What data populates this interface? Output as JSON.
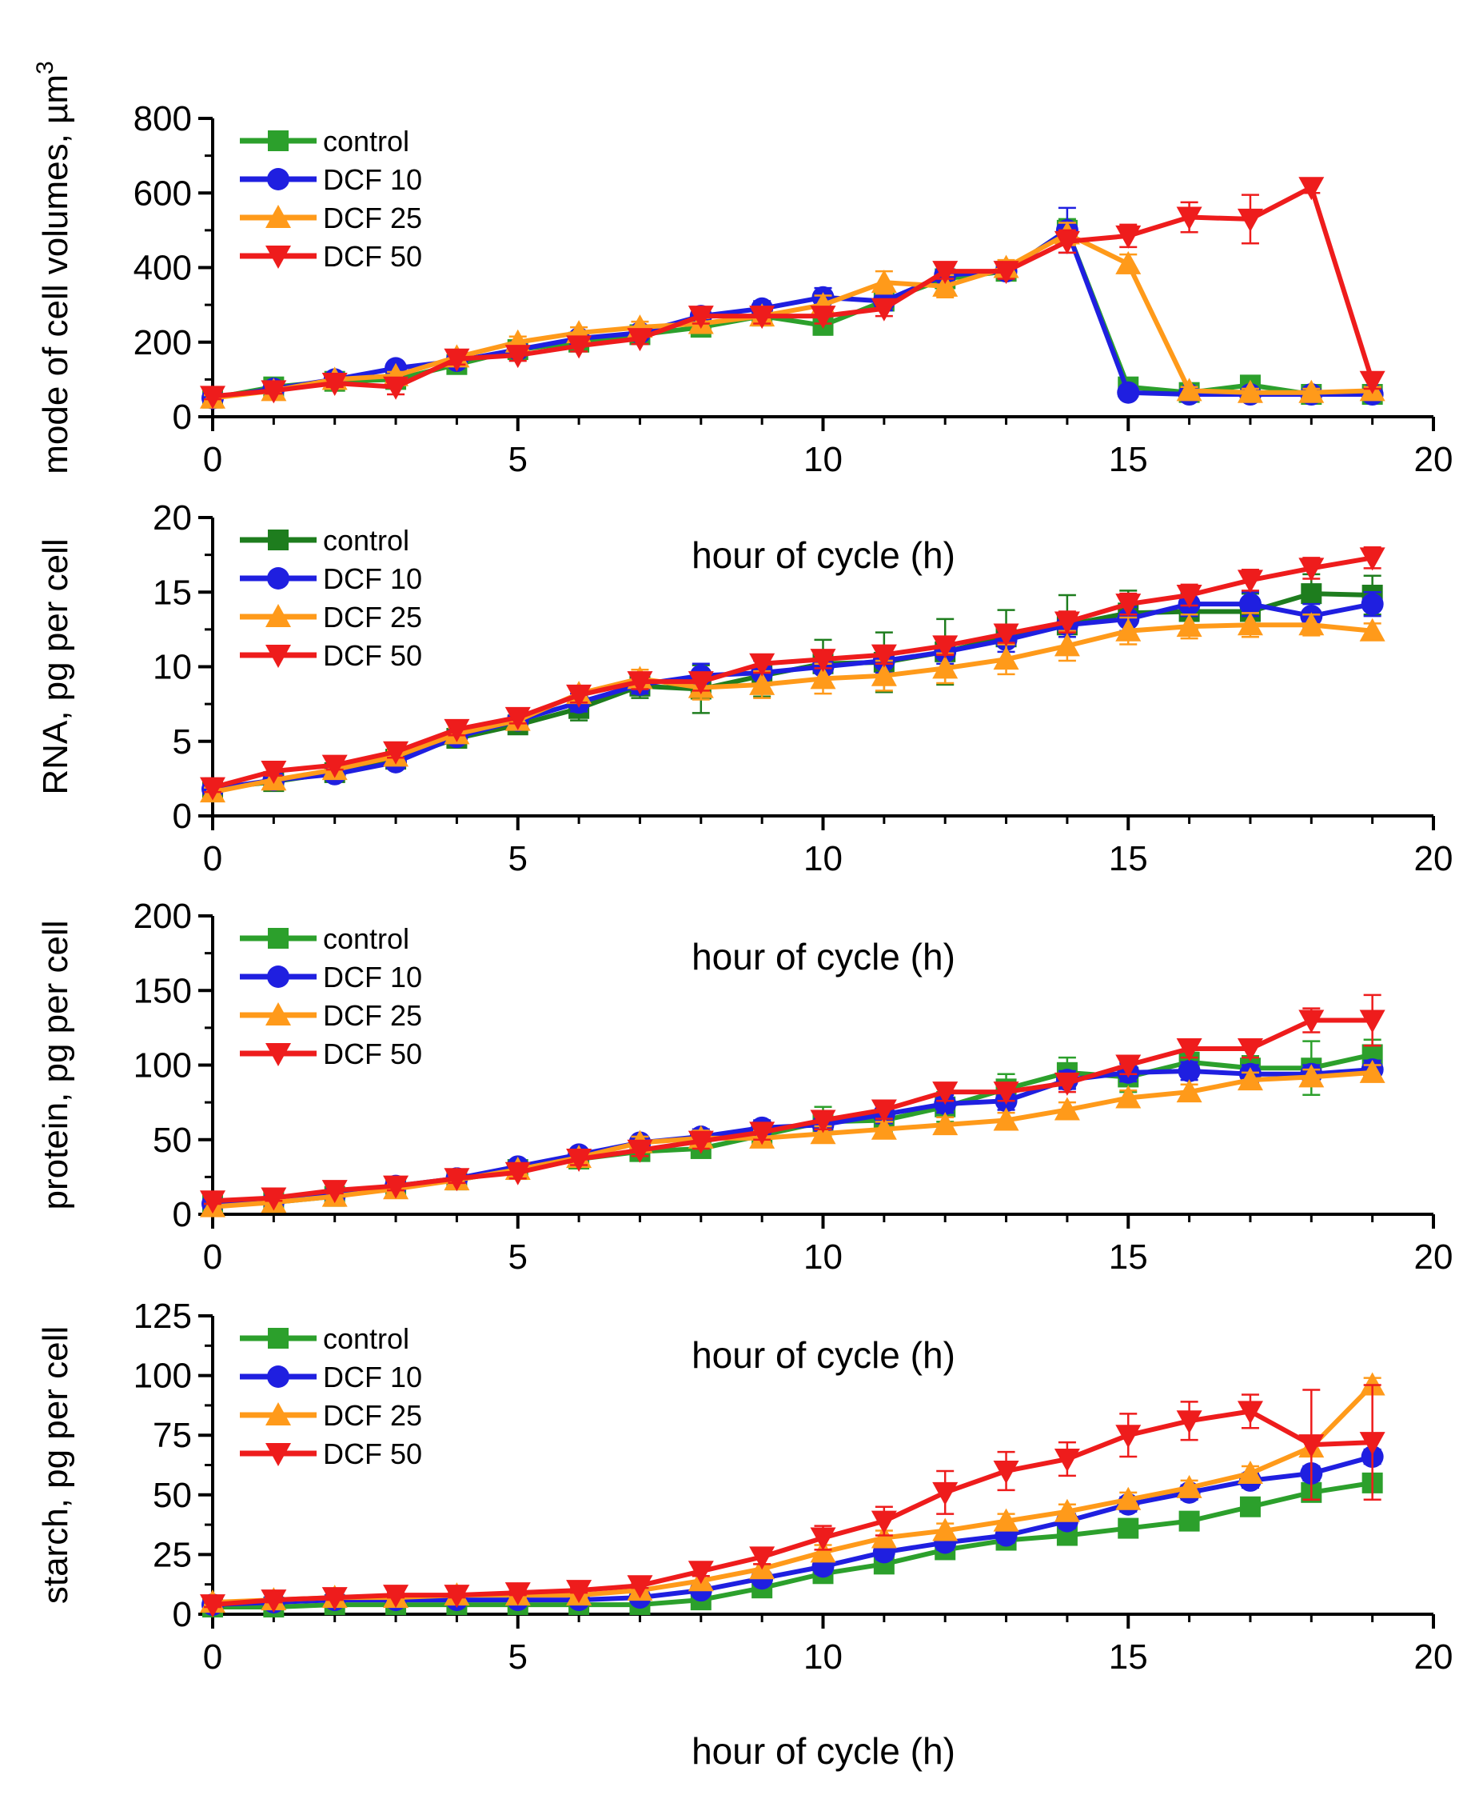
{
  "chart_data": [
    {
      "type": "line",
      "title": "",
      "ylabel": "mode of cell volumes, µm",
      "ylabel_sup": "3",
      "xlabel": "hour of cycle (h)",
      "xlim": [
        0,
        20
      ],
      "ylim": [
        0,
        800
      ],
      "xticks": [
        "0",
        "5",
        "10",
        "15",
        "20"
      ],
      "yticks": [
        "0",
        "200",
        "400",
        "600",
        "800"
      ],
      "x": [
        0,
        1,
        2,
        3,
        4,
        5,
        6,
        7,
        8,
        9,
        10,
        11,
        12,
        13,
        14,
        15,
        16,
        17,
        18,
        19
      ],
      "legend_position": "top-left",
      "series": [
        {
          "name": "control",
          "color": "#2ca02c",
          "marker": "square",
          "values": [
            50,
            80,
            95,
            100,
            140,
            180,
            200,
            220,
            240,
            270,
            245,
            310,
            370,
            390,
            500,
            80,
            65,
            85,
            60,
            60
          ],
          "errors": [
            8,
            8,
            10,
            10,
            15,
            15,
            15,
            15,
            15,
            20,
            25,
            20,
            20,
            20,
            30,
            15,
            10,
            15,
            10,
            10
          ]
        },
        {
          "name": "DCF 10",
          "color": "#1f1fe0",
          "marker": "circle",
          "values": [
            50,
            75,
            100,
            130,
            150,
            180,
            210,
            225,
            270,
            290,
            320,
            310,
            380,
            390,
            500,
            65,
            60,
            60,
            60,
            60
          ],
          "errors": [
            8,
            8,
            10,
            15,
            15,
            15,
            15,
            15,
            20,
            20,
            25,
            25,
            25,
            20,
            60,
            10,
            10,
            10,
            10,
            10
          ]
        },
        {
          "name": "DCF 25",
          "color": "#ff9a1a",
          "marker": "triangle-up",
          "values": [
            50,
            70,
            100,
            110,
            160,
            200,
            225,
            240,
            250,
            270,
            300,
            360,
            350,
            400,
            490,
            410,
            70,
            65,
            65,
            70
          ],
          "errors": [
            8,
            8,
            10,
            10,
            15,
            15,
            15,
            15,
            15,
            20,
            25,
            30,
            30,
            20,
            30,
            25,
            10,
            10,
            10,
            10
          ]
        },
        {
          "name": "DCF 50",
          "color": "#ee1c1c",
          "marker": "triangle-down",
          "values": [
            55,
            70,
            90,
            80,
            155,
            165,
            190,
            210,
            270,
            270,
            270,
            290,
            390,
            390,
            470,
            485,
            535,
            530,
            615,
            95
          ],
          "errors": [
            8,
            8,
            10,
            20,
            15,
            15,
            15,
            15,
            20,
            20,
            20,
            20,
            20,
            20,
            30,
            30,
            40,
            65,
            15,
            20
          ]
        }
      ]
    },
    {
      "type": "line",
      "title": "",
      "ylabel": "RNA, pg per cell",
      "xlabel": "hour of cycle (h)",
      "xlim": [
        0,
        20
      ],
      "ylim": [
        0,
        20
      ],
      "xticks": [
        "0",
        "5",
        "10",
        "15",
        "20"
      ],
      "yticks": [
        "0",
        "5",
        "10",
        "15",
        "20"
      ],
      "x": [
        0,
        1,
        2,
        3,
        4,
        5,
        6,
        7,
        8,
        9,
        10,
        11,
        12,
        13,
        14,
        15,
        16,
        17,
        18,
        19
      ],
      "legend_position": "top-left",
      "series": [
        {
          "name": "control",
          "color": "#1e7d1e",
          "marker": "square",
          "values": [
            1.8,
            2.3,
            2.9,
            3.8,
            5.2,
            6.1,
            7.2,
            8.7,
            8.5,
            9.4,
            10.2,
            10.3,
            11.0,
            12.0,
            12.8,
            13.6,
            13.7,
            13.7,
            14.9,
            14.8
          ],
          "errors": [
            0.3,
            0.3,
            0.4,
            0.4,
            0.4,
            0.5,
            0.8,
            0.8,
            1.6,
            1.4,
            1.6,
            2.0,
            2.2,
            1.8,
            2.0,
            1.5,
            1.2,
            1.2,
            1.3,
            1.3
          ]
        },
        {
          "name": "DCF 10",
          "color": "#1f1fe0",
          "marker": "circle",
          "values": [
            1.8,
            2.4,
            2.8,
            3.6,
            5.3,
            6.4,
            7.6,
            8.8,
            9.4,
            9.6,
            10.0,
            10.4,
            11.0,
            11.8,
            12.8,
            13.2,
            14.2,
            14.2,
            13.4,
            14.2
          ],
          "errors": [
            0.3,
            0.3,
            0.3,
            0.4,
            0.4,
            0.4,
            0.6,
            0.6,
            0.8,
            0.8,
            0.8,
            0.8,
            0.8,
            0.8,
            0.8,
            0.8,
            0.8,
            0.8,
            0.8,
            0.8
          ]
        },
        {
          "name": "DCF 25",
          "color": "#ff9a1a",
          "marker": "triangle-up",
          "values": [
            1.6,
            2.4,
            3.1,
            4.0,
            5.5,
            6.4,
            8.2,
            9.2,
            8.6,
            8.8,
            9.2,
            9.4,
            9.9,
            10.5,
            11.4,
            12.4,
            12.7,
            12.8,
            12.8,
            12.4
          ],
          "errors": [
            0.3,
            0.3,
            0.3,
            0.4,
            0.4,
            0.4,
            0.5,
            0.6,
            0.8,
            0.9,
            1.0,
            1.0,
            1.0,
            1.0,
            1.0,
            0.9,
            0.8,
            0.8,
            0.7,
            0.5
          ]
        },
        {
          "name": "DCF 50",
          "color": "#ee1c1c",
          "marker": "triangle-down",
          "values": [
            1.9,
            3.0,
            3.4,
            4.3,
            5.8,
            6.6,
            8.1,
            9.0,
            9.0,
            10.2,
            10.5,
            10.8,
            11.4,
            12.2,
            13.0,
            14.2,
            14.8,
            15.8,
            16.6,
            17.3
          ],
          "errors": [
            0.3,
            0.3,
            0.3,
            0.4,
            0.4,
            0.4,
            0.5,
            0.5,
            0.6,
            0.6,
            0.6,
            0.6,
            0.6,
            0.6,
            0.7,
            0.7,
            0.7,
            0.7,
            0.7,
            0.7
          ]
        }
      ]
    },
    {
      "type": "line",
      "title": "",
      "ylabel": "protein, pg per cell",
      "xlabel": "hour of cycle (h)",
      "xlim": [
        0,
        20
      ],
      "ylim": [
        0,
        200
      ],
      "xticks": [
        "0",
        "5",
        "10",
        "15",
        "20"
      ],
      "yticks": [
        "0",
        "50",
        "100",
        "150",
        "200"
      ],
      "x": [
        0,
        1,
        2,
        3,
        4,
        5,
        6,
        7,
        8,
        9,
        10,
        11,
        12,
        13,
        14,
        15,
        16,
        17,
        18,
        19
      ],
      "legend_position": "top-left",
      "series": [
        {
          "name": "control",
          "color": "#2ca02c",
          "marker": "square",
          "values": [
            6,
            8,
            12,
            18,
            23,
            30,
            37,
            42,
            44,
            53,
            62,
            63,
            72,
            84,
            95,
            92,
            102,
            98,
            98,
            107
          ],
          "errors": [
            2,
            2,
            2,
            3,
            3,
            4,
            4,
            4,
            5,
            6,
            10,
            8,
            10,
            10,
            10,
            10,
            8,
            8,
            18,
            10
          ]
        },
        {
          "name": "DCF 10",
          "color": "#1f1fe0",
          "marker": "circle",
          "values": [
            7,
            9,
            13,
            19,
            24,
            32,
            40,
            48,
            52,
            58,
            60,
            67,
            74,
            76,
            90,
            95,
            96,
            94,
            94,
            97
          ],
          "errors": [
            2,
            2,
            2,
            3,
            3,
            4,
            4,
            4,
            5,
            5,
            6,
            6,
            6,
            6,
            6,
            6,
            6,
            6,
            6,
            6
          ]
        },
        {
          "name": "DCF 25",
          "color": "#ff9a1a",
          "marker": "triangle-up",
          "values": [
            5,
            8,
            12,
            17,
            23,
            30,
            38,
            48,
            51,
            51,
            54,
            57,
            60,
            63,
            70,
            78,
            82,
            90,
            92,
            95
          ],
          "errors": [
            2,
            2,
            2,
            3,
            3,
            4,
            4,
            4,
            5,
            5,
            5,
            5,
            5,
            5,
            5,
            5,
            5,
            5,
            5,
            5
          ]
        },
        {
          "name": "DCF 50",
          "color": "#ee1c1c",
          "marker": "triangle-down",
          "values": [
            9,
            11,
            16,
            19,
            24,
            28,
            37,
            43,
            49,
            55,
            63,
            70,
            82,
            82,
            88,
            100,
            111,
            111,
            130,
            130
          ],
          "errors": [
            2,
            2,
            2,
            3,
            3,
            4,
            4,
            4,
            5,
            5,
            6,
            6,
            6,
            6,
            6,
            6,
            6,
            6,
            8,
            17
          ]
        }
      ]
    },
    {
      "type": "line",
      "title": "",
      "ylabel": "starch, pg per cell",
      "xlabel": "hour of cycle (h)",
      "xlim": [
        0,
        20
      ],
      "ylim": [
        0,
        125
      ],
      "xticks": [
        "0",
        "5",
        "10",
        "15",
        "20"
      ],
      "yticks": [
        "0",
        "25",
        "50",
        "75",
        "100",
        "125"
      ],
      "x": [
        0,
        1,
        2,
        3,
        4,
        5,
        6,
        7,
        8,
        9,
        10,
        11,
        12,
        13,
        14,
        15,
        16,
        17,
        18,
        19
      ],
      "legend_position": "top-left",
      "series": [
        {
          "name": "control",
          "color": "#2ca02c",
          "marker": "square",
          "values": [
            3,
            3,
            4,
            4,
            4,
            4,
            4,
            4,
            6,
            11,
            17,
            21,
            27,
            31,
            33,
            36,
            39,
            45,
            51,
            55
          ],
          "errors": [
            1,
            1,
            1,
            1,
            1,
            1,
            1,
            1,
            2,
            2,
            3,
            3,
            3,
            3,
            3,
            3,
            3,
            3,
            3,
            3
          ]
        },
        {
          "name": "DCF 10",
          "color": "#1f1fe0",
          "marker": "circle",
          "values": [
            4,
            5,
            6,
            6,
            6,
            6,
            6,
            7,
            10,
            15,
            20,
            26,
            30,
            33,
            39,
            46,
            51,
            56,
            59,
            66
          ],
          "errors": [
            1,
            1,
            1,
            1,
            1,
            1,
            1,
            1,
            2,
            2,
            3,
            3,
            3,
            3,
            3,
            3,
            3,
            3,
            3,
            3
          ]
        },
        {
          "name": "DCF 25",
          "color": "#ff9a1a",
          "marker": "triangle-up",
          "values": [
            5,
            6,
            7,
            7,
            8,
            8,
            8,
            10,
            14,
            19,
            26,
            32,
            35,
            39,
            43,
            48,
            53,
            59,
            70,
            96
          ],
          "errors": [
            1,
            1,
            1,
            1,
            1,
            1,
            1,
            1,
            2,
            2,
            3,
            3,
            3,
            3,
            3,
            3,
            3,
            3,
            3,
            3
          ]
        },
        {
          "name": "DCF 50",
          "color": "#ee1c1c",
          "marker": "triangle-down",
          "values": [
            4,
            6,
            7,
            8,
            8,
            9,
            10,
            12,
            18,
            24,
            32,
            39,
            51,
            60,
            65,
            75,
            81,
            85,
            71,
            72
          ],
          "errors": [
            1,
            1,
            1,
            1,
            1,
            1,
            1,
            1,
            2,
            3,
            5,
            6,
            9,
            8,
            7,
            9,
            8,
            7,
            23,
            24
          ]
        }
      ]
    }
  ]
}
